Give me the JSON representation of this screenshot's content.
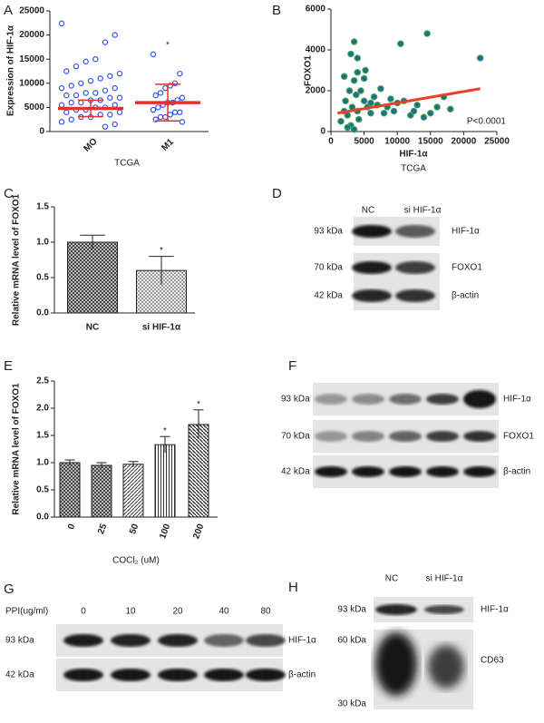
{
  "chart_data": [
    {
      "type": "strip",
      "panel": "A",
      "ylabel": "Expression of HIF-1α",
      "xlabel": "TCGA",
      "categories": [
        "MO",
        "M1"
      ],
      "points": [
        [
          22400,
          20000,
          18500,
          15000,
          14500,
          13500,
          12500,
          12000,
          11500,
          11000,
          10500,
          10000,
          9500,
          9000,
          9000,
          8500,
          8000,
          8000,
          7500,
          7500,
          7000,
          7000,
          6500,
          6500,
          6000,
          6000,
          5500,
          5500,
          5000,
          5000,
          4500,
          4500,
          4000,
          4000,
          3500,
          3500,
          3000,
          3000,
          2500,
          2000,
          1500,
          1000
        ],
        [
          16000,
          12000,
          10000,
          9500,
          9000,
          8000,
          7500,
          7000,
          6500,
          6000,
          6000,
          5500,
          5000,
          4500,
          4000,
          4000,
          3500,
          3000,
          3000,
          2500,
          2000
        ]
      ],
      "means": [
        4800,
        6000
      ],
      "sd": [
        1700,
        3800
      ],
      "star": [
        null,
        "*"
      ],
      "point_color": "#3355ee",
      "mean_color": "#e8302a",
      "ylim": [
        0,
        25000
      ],
      "yticks": [
        0,
        5000,
        10000,
        15000,
        20000,
        25000
      ]
    },
    {
      "type": "scatter",
      "panel": "B",
      "xlabel": "HIF-1α",
      "subtitle": "TCGA",
      "ylabel": "FOXO1",
      "annotation": "P<0.0001",
      "x": [
        1500,
        2000,
        2200,
        2500,
        2800,
        3000,
        3200,
        3500,
        3500,
        3800,
        4000,
        4200,
        4500,
        5000,
        5200,
        5500,
        6000,
        6500,
        7000,
        7500,
        8000,
        8500,
        9000,
        9500,
        10000,
        10500,
        11000,
        12000,
        12500,
        13000,
        14000,
        14500,
        15000,
        16000,
        17000,
        18000,
        22500,
        3000,
        4000,
        2500,
        3500,
        5000,
        6000,
        4000,
        2000
      ],
      "y": [
        500,
        1000,
        1500,
        800,
        2000,
        300,
        1200,
        2500,
        4400,
        1800,
        1000,
        600,
        2000,
        1500,
        3000,
        1200,
        900,
        1700,
        1300,
        2100,
        900,
        1200,
        1600,
        1000,
        1400,
        4300,
        1500,
        800,
        1000,
        1300,
        700,
        4800,
        900,
        1200,
        1700,
        1100,
        3600,
        3800,
        3600,
        200,
        100,
        2600,
        1400,
        2900,
        2700
      ],
      "fit": {
        "x": [
          1000,
          22500
        ],
        "y": [
          900,
          2100
        ]
      },
      "point_color": "#1f6e8c",
      "point_edge": "#4caf50",
      "fit_color": "#e8402a",
      "xlim": [
        0,
        25000
      ],
      "xticks": [
        0,
        5000,
        10000,
        15000,
        20000,
        25000
      ],
      "ylim": [
        0,
        6000
      ],
      "yticks": [
        0,
        2000,
        4000,
        6000
      ]
    },
    {
      "type": "bar",
      "panel": "C",
      "ylabel": "Relative mRNA level of FOXO1",
      "categories": [
        "NC",
        "si HIF-1α"
      ],
      "values": [
        1.0,
        0.6
      ],
      "errors": [
        0.1,
        0.2
      ],
      "star": [
        null,
        "*"
      ],
      "ylim": [
        0,
        1.5
      ],
      "yticks": [
        {
          "value": 0,
          "label": "0.0"
        },
        {
          "value": 0.5,
          "label": "0.5"
        },
        {
          "value": 1,
          "label": "1.0"
        },
        {
          "value": 1.5,
          "label": "1.5"
        }
      ]
    },
    {
      "type": "bar",
      "panel": "E",
      "ylabel": "Relative mRNA level of FOXO1",
      "xlabel": "COCl₂  (uM)",
      "categories": [
        "0",
        "25",
        "50",
        "100",
        "200"
      ],
      "values": [
        1.0,
        0.95,
        0.97,
        1.33,
        1.7
      ],
      "errors": [
        0.05,
        0.05,
        0.05,
        0.15,
        0.27
      ],
      "star": [
        null,
        null,
        null,
        "*",
        "*"
      ],
      "ylim": [
        0,
        2.5
      ],
      "yticks": [
        {
          "value": 0,
          "label": "0.0"
        },
        {
          "value": 0.5,
          "label": "0.5"
        },
        {
          "value": 1,
          "label": "1.0"
        },
        {
          "value": 1.5,
          "label": "1.5"
        },
        {
          "value": 2,
          "label": "2.0"
        },
        {
          "value": 2.5,
          "label": "2.5"
        }
      ]
    }
  ],
  "blots": [
    {
      "panel": "D",
      "lanes": [
        "NC",
        "si HIF-1α"
      ],
      "rows": [
        {
          "kda": "93 kDa",
          "protein": "HIF-1α"
        },
        {
          "kda": "70 kDa",
          "protein": "FOXO1"
        },
        {
          "kda": "42 kDa",
          "protein": "β-actin"
        }
      ]
    },
    {
      "panel": "F",
      "rows": [
        {
          "kda": "93 kDa",
          "protein": "HIF-1α"
        },
        {
          "kda": "70 kDa",
          "protein": "FOXO1"
        },
        {
          "kda": "42 kDa",
          "protein": "β-actin"
        }
      ]
    },
    {
      "panel": "G",
      "lane_title": "PPI(ug/ml)",
      "lanes": [
        "0",
        "10",
        "20",
        "40",
        "80"
      ],
      "rows": [
        {
          "kda": "93 kDa",
          "protein": "HIF-1α"
        },
        {
          "kda": "42 kDa",
          "protein": "β-actin"
        }
      ]
    },
    {
      "panel": "H",
      "lanes": [
        "NC",
        "si HIF-1α"
      ],
      "rows": [
        {
          "kda": "93 kDa",
          "protein": "HIF-1α"
        },
        {
          "protein": "CD63"
        }
      ],
      "markers": [
        "60 kDa",
        "30 kDa"
      ]
    }
  ]
}
